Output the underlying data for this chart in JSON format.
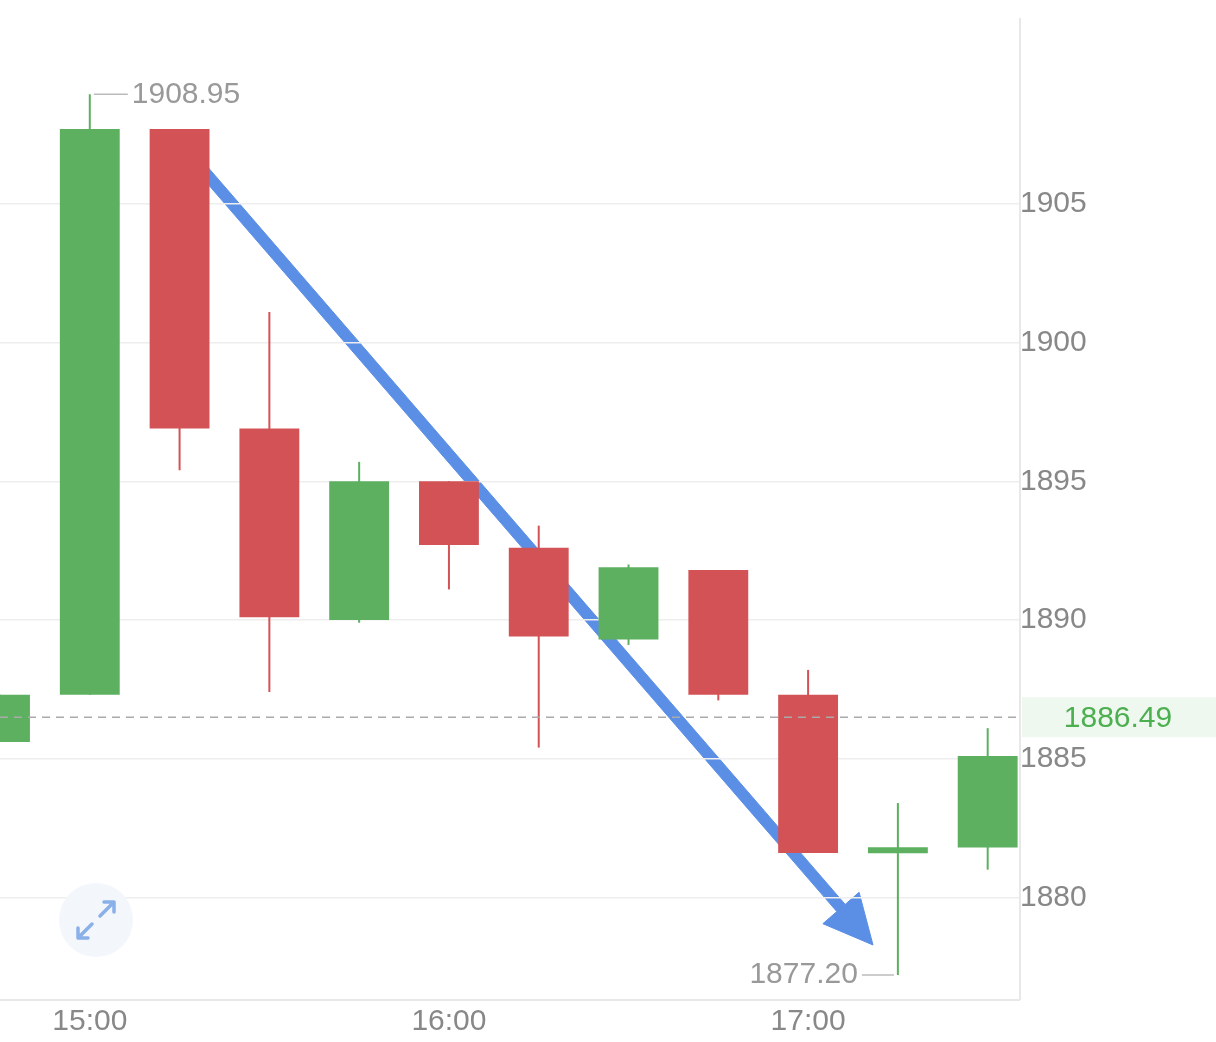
{
  "chart_data": {
    "type": "candlestick",
    "x": [
      14.75,
      15,
      15.25,
      15.5,
      15.75,
      16,
      16.25,
      16.5,
      16.75,
      17,
      17.25,
      17.5
    ],
    "ohlc": [
      [
        1885.6,
        1887.3,
        1885.6,
        1887.3
      ],
      [
        1887.3,
        1908.95,
        1887.3,
        1907.7
      ],
      [
        1907.7,
        1907.7,
        1895.4,
        1896.9
      ],
      [
        1896.9,
        1901.1,
        1887.4,
        1890.1
      ],
      [
        1890.0,
        1895.7,
        1889.9,
        1895.0
      ],
      [
        1895.0,
        1895.0,
        1891.1,
        1892.7
      ],
      [
        1892.6,
        1893.4,
        1885.4,
        1889.4
      ],
      [
        1889.3,
        1892.0,
        1889.1,
        1891.9
      ],
      [
        1891.8,
        1891.8,
        1887.1,
        1887.3
      ],
      [
        1887.3,
        1888.2,
        1881.6,
        1881.6
      ],
      [
        1881.6,
        1883.4,
        1877.2,
        1881.8
      ],
      [
        1881.8,
        1886.1,
        1881.0,
        1885.1
      ]
    ],
    "colors": [
      "#5cb060",
      "#5cb060",
      "#d35256",
      "#d35256",
      "#5cb060",
      "#d35256",
      "#d35256",
      "#5cb060",
      "#d35256",
      "#d35256",
      "#5cb060",
      "#5cb060"
    ],
    "xlim": [
      14.75,
      17.59
    ],
    "xticks": [
      {
        "value": 15,
        "label": "15:00"
      },
      {
        "value": 16,
        "label": "16:00"
      },
      {
        "value": 17,
        "label": "17:00"
      }
    ],
    "ylim": [
      1876.3,
      1911.7
    ],
    "yticks": [
      1880,
      1885,
      1890,
      1895,
      1900,
      1905
    ],
    "grid": "y",
    "ref_lines": [
      {
        "axis": "y",
        "value": 1886.49,
        "label": "1886.49",
        "color": "#aaaaaa",
        "line_style": "dashed"
      }
    ],
    "annotations": [
      {
        "text": "1908.95",
        "x": 15,
        "y": 1908.95
      },
      {
        "text": "1877.20",
        "x": 17.25,
        "y": 1877.2
      }
    ]
  }
}
